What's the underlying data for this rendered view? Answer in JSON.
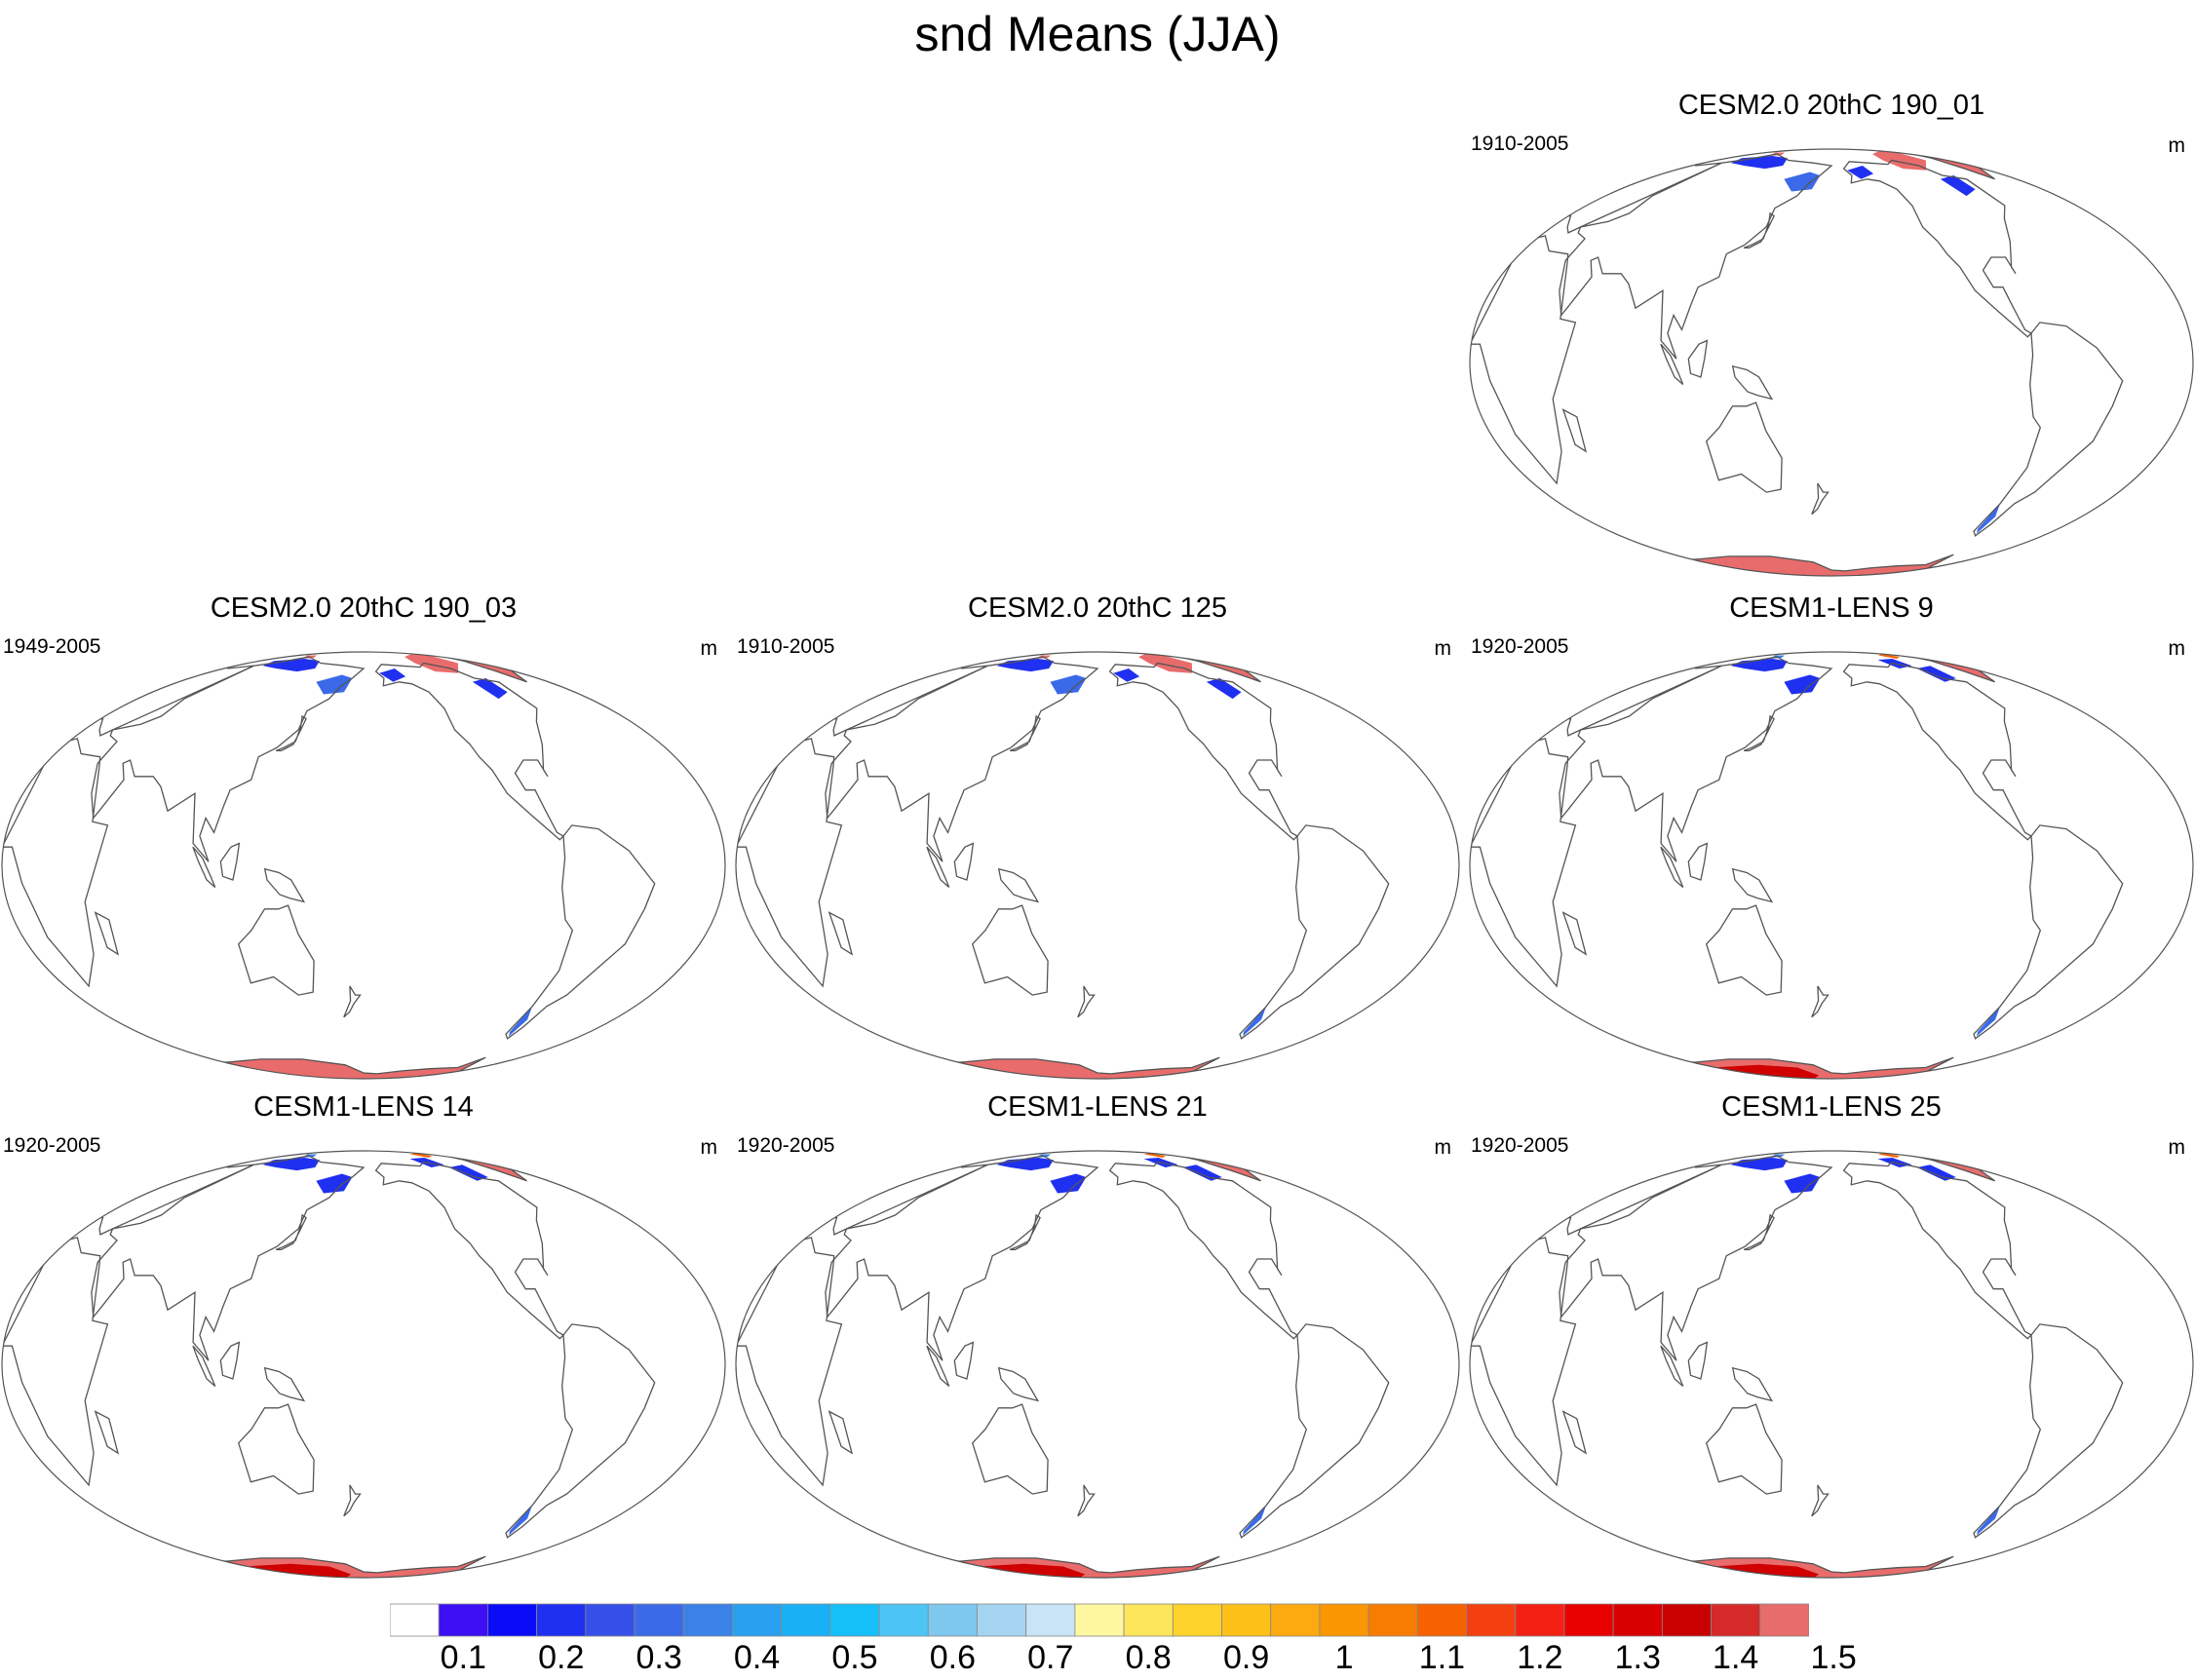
{
  "figure": {
    "title": "snd Means (JJA)"
  },
  "panels": [
    {
      "title": "CESM2.0 20thC 190_01",
      "years": "1910-2005",
      "units": "m",
      "variant": "cesm2"
    },
    {
      "title": "CESM2.0 20thC 190_03",
      "years": "1949-2005",
      "units": "m",
      "variant": "cesm2"
    },
    {
      "title": "CESM2.0 20thC 125",
      "years": "1910-2005",
      "units": "m",
      "variant": "cesm2"
    },
    {
      "title": "CESM1-LENS 9",
      "years": "1920-2005",
      "units": "m",
      "variant": "lens"
    },
    {
      "title": "CESM1-LENS 14",
      "years": "1920-2005",
      "units": "m",
      "variant": "lens"
    },
    {
      "title": "CESM1-LENS 21",
      "years": "1920-2005",
      "units": "m",
      "variant": "lens"
    },
    {
      "title": "CESM1-LENS 25",
      "years": "1920-2005",
      "units": "m",
      "variant": "lens"
    }
  ],
  "colorbar": {
    "labels": [
      "0.1",
      "0.2",
      "0.3",
      "0.4",
      "0.5",
      "0.6",
      "0.7",
      "0.8",
      "0.9",
      "1",
      "1.1",
      "1.2",
      "1.3",
      "1.4",
      "1.5"
    ],
    "colors": [
      "#ffffff",
      "#3d0ff5",
      "#0a0cf7",
      "#2030f0",
      "#3550e8",
      "#3a6ae8",
      "#3a82e8",
      "#2aa0f0",
      "#1ab0f5",
      "#15c0f8",
      "#4cc4f5",
      "#7ec8f0",
      "#a4d4f0",
      "#c8e4f5",
      "#fdf8a0",
      "#fde65a",
      "#fdd22a",
      "#fcc018",
      "#fcaa10",
      "#fa9600",
      "#f87c00",
      "#f66200",
      "#f44010",
      "#f42014",
      "#e80000",
      "#d80000",
      "#c80000",
      "#d42a2a",
      "#e86c6c"
    ]
  },
  "legend_colors": {
    "land_snow_high": "#e86c6c",
    "land_snow_max": "#d00000",
    "coast": "#555555"
  }
}
